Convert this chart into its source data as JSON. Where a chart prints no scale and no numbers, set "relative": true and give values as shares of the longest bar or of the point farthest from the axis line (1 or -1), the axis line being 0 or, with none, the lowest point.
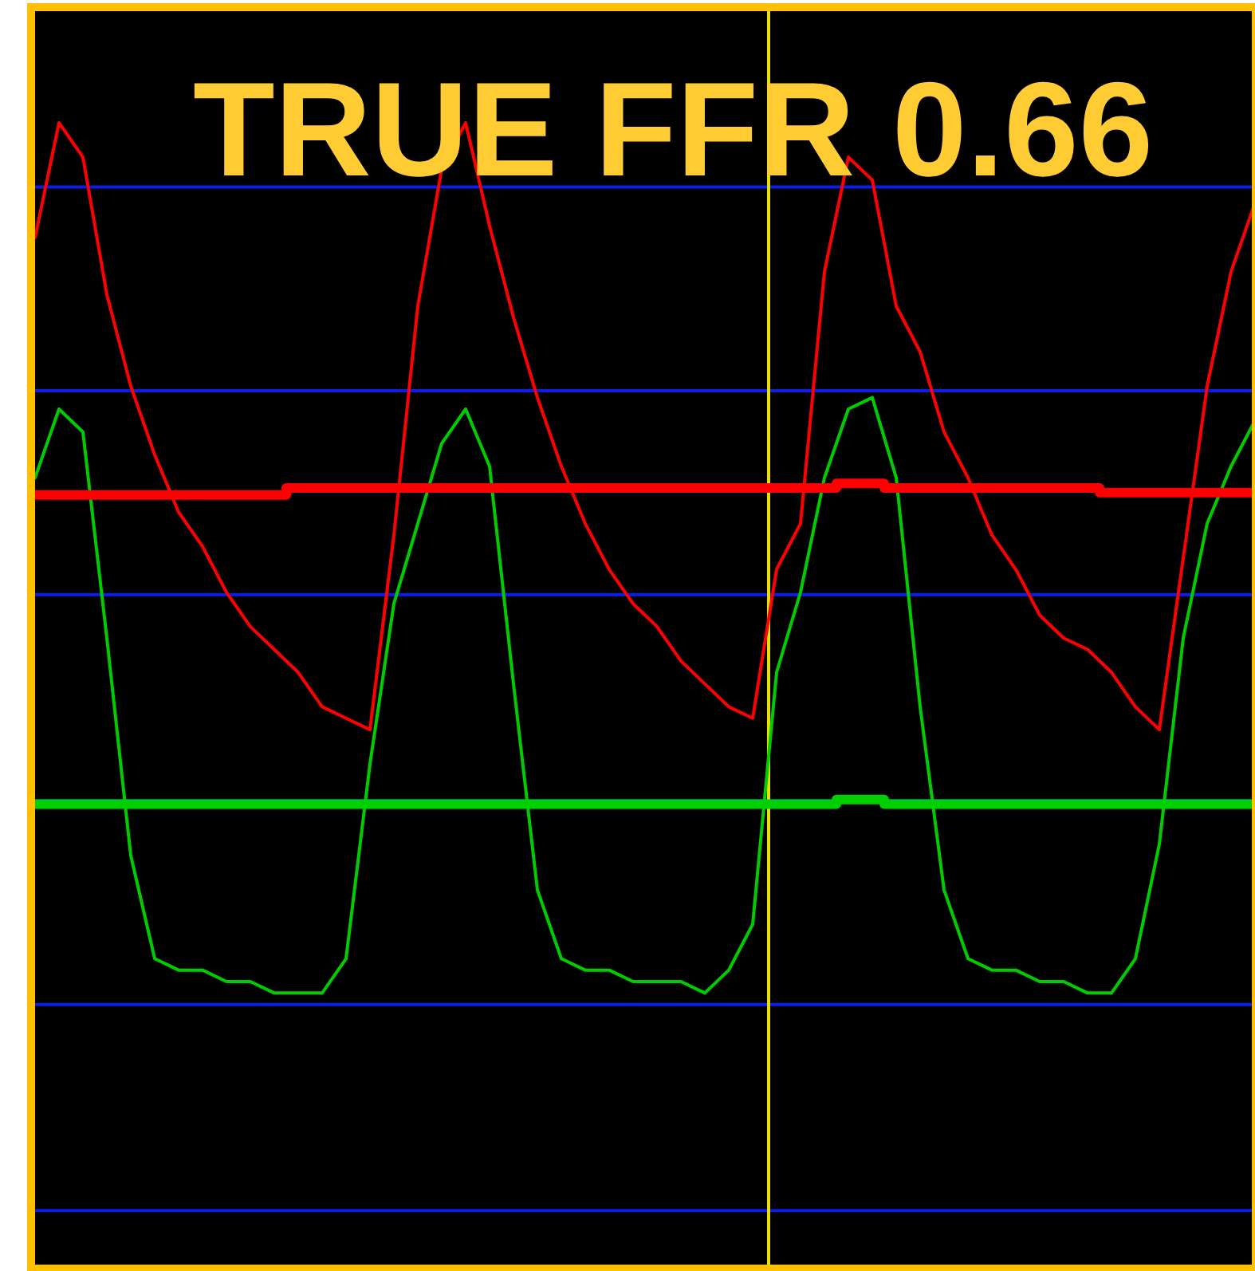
{
  "chart_data": {
    "type": "line",
    "title": "TRUE FFR 0.66",
    "relative": true,
    "categories": [
      null,
      null,
      null,
      null,
      null,
      null,
      null,
      null,
      null,
      null,
      null,
      null,
      null,
      null,
      null,
      null,
      null,
      null,
      null,
      null,
      null,
      null,
      null,
      null,
      null,
      null,
      null,
      null,
      null,
      null,
      null,
      null,
      null,
      null,
      null,
      null,
      null,
      null,
      null,
      null,
      null,
      null,
      null,
      null,
      null,
      null,
      null,
      null,
      null,
      null,
      null,
      null
    ],
    "series": [
      {
        "color": "#ff0000",
        "values": [
          0.9,
          1.0,
          0.97,
          0.85,
          0.77,
          0.71,
          0.66,
          0.63,
          0.59,
          0.56,
          0.54,
          0.52,
          0.49,
          0.48,
          0.47,
          0.64,
          0.84,
          0.96,
          1.0,
          0.91,
          0.83,
          0.76,
          0.7,
          0.65,
          0.61,
          0.58,
          0.56,
          0.53,
          0.51,
          0.49,
          0.48,
          0.61,
          0.65,
          0.87,
          0.97,
          0.95,
          0.84,
          0.8,
          0.73,
          0.69,
          0.64,
          0.61,
          0.57,
          0.55,
          0.54,
          0.52,
          0.49,
          0.47,
          0.62,
          0.77,
          0.87,
          0.93
        ]
      },
      {
        "color": "#00cc00",
        "values": [
          0.69,
          0.75,
          0.73,
          0.55,
          0.36,
          0.27,
          0.26,
          0.26,
          0.25,
          0.25,
          0.24,
          0.24,
          0.24,
          0.27,
          0.44,
          0.58,
          0.65,
          0.72,
          0.75,
          0.7,
          0.51,
          0.33,
          0.27,
          0.26,
          0.26,
          0.25,
          0.25,
          0.25,
          0.24,
          0.26,
          0.3,
          0.52,
          0.59,
          0.69,
          0.75,
          0.76,
          0.69,
          0.49,
          0.33,
          0.27,
          0.26,
          0.26,
          0.25,
          0.25,
          0.24,
          0.24,
          0.27,
          0.37,
          0.55,
          0.65,
          0.7,
          0.74
        ]
      },
      {
        "type": "step",
        "color": "#ff0000",
        "values": [
          0.675,
          0.675,
          0.675,
          0.675,
          0.675,
          0.675,
          0.675,
          0.675,
          0.675,
          0.675,
          0.675,
          0.681,
          0.681,
          0.681,
          0.681,
          0.681,
          0.681,
          0.681,
          0.681,
          0.681,
          0.681,
          0.681,
          0.681,
          0.681,
          0.681,
          0.681,
          0.681,
          0.681,
          0.681,
          0.681,
          0.681,
          0.681,
          0.681,
          0.681,
          0.685,
          0.685,
          0.681,
          0.681,
          0.681,
          0.681,
          0.681,
          0.681,
          0.681,
          0.681,
          0.681,
          0.677,
          0.677,
          0.677,
          0.677,
          0.677,
          0.677,
          0.677
        ]
      },
      {
        "type": "step",
        "color": "#00d000",
        "values": [
          0.405,
          0.405,
          0.405,
          0.405,
          0.405,
          0.405,
          0.405,
          0.405,
          0.405,
          0.405,
          0.405,
          0.405,
          0.405,
          0.405,
          0.405,
          0.405,
          0.405,
          0.405,
          0.405,
          0.405,
          0.405,
          0.405,
          0.405,
          0.405,
          0.405,
          0.405,
          0.405,
          0.405,
          0.405,
          0.405,
          0.405,
          0.405,
          0.405,
          0.405,
          0.409,
          0.409,
          0.405,
          0.405,
          0.405,
          0.405,
          0.405,
          0.405,
          0.405,
          0.405,
          0.405,
          0.405,
          0.405,
          0.405,
          0.405,
          0.405,
          0.405,
          0.405
        ]
      }
    ],
    "ref_lines": [
      {
        "axis": "y",
        "value": 0.944,
        "color": "#0a1ee6"
      },
      {
        "axis": "y",
        "value": 0.766,
        "color": "#0a1ee6"
      },
      {
        "axis": "y",
        "value": 0.588,
        "color": "#0a1ee6"
      },
      {
        "axis": "y",
        "value": 0.408,
        "color": "#0a1ee6"
      },
      {
        "axis": "y",
        "value": 0.23,
        "color": "#0a1ee6"
      },
      {
        "axis": "y",
        "value": 0.05,
        "color": "#0a1ee6"
      }
    ]
  }
}
